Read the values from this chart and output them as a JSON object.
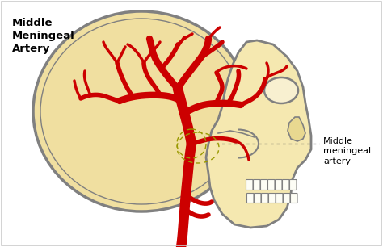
{
  "bg_color": "#ffffff",
  "skull_fill": "#f0dfa0",
  "skull_outline": "#808080",
  "face_fill": "#f5e8b0",
  "artery_color": "#cc0000",
  "text_color": "#000000",
  "label_left": "Middle\nMeningeal\nArtery",
  "label_right": "Middle\nmeningeal\nartery",
  "border_color": "#cccccc",
  "figsize": [
    4.74,
    3.06
  ],
  "dpi": 100
}
